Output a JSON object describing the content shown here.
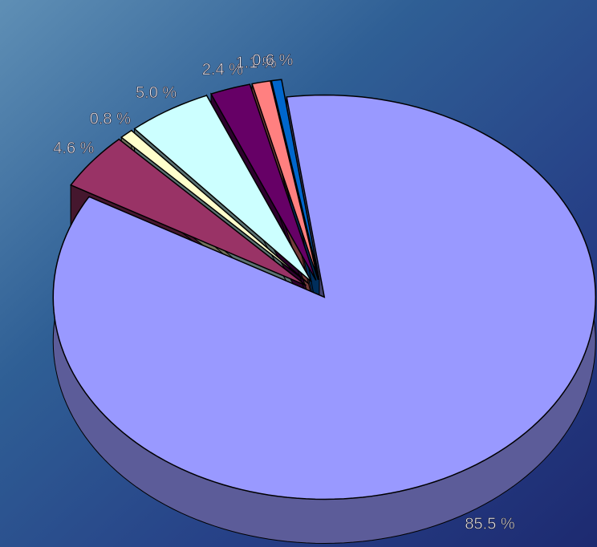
{
  "chart_data": {
    "type": "pie",
    "style": "3d-exploded",
    "values": [
      85.5,
      4.6,
      0.8,
      5.0,
      2.4,
      1.1,
      0.6
    ],
    "value_labels": [
      "85.5 %",
      "4.6 %",
      "0.8 %",
      "5.0 %",
      "2.4 %",
      "1.1 %",
      "0.6 %"
    ],
    "colors": [
      "#9999ff",
      "#993366",
      "#ffffcc",
      "#ccffff",
      "#660066",
      "#ff8080",
      "#0066cc"
    ]
  }
}
